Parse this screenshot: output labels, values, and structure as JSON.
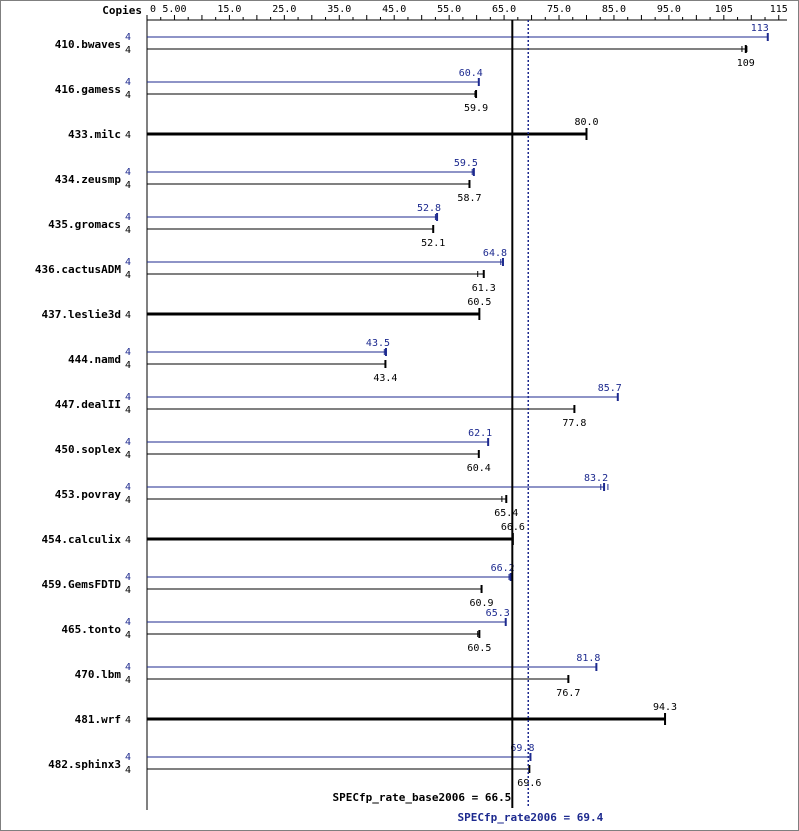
{
  "chart_data": {
    "type": "bar",
    "copies_header": "Copies",
    "x_ticks": [
      "0",
      "5.00",
      "15.0",
      "25.0",
      "35.0",
      "45.0",
      "55.0",
      "65.0",
      "75.0",
      "85.0",
      "95.0",
      "105",
      "115"
    ],
    "x_tick_values": [
      0,
      5,
      15,
      25,
      35,
      45,
      55,
      65,
      75,
      85,
      95,
      105,
      115
    ],
    "xlim": [
      0,
      116.5
    ],
    "grid": false,
    "colors": {
      "peak": "#1d2a8f",
      "base": "#000000",
      "frame": "#7f7f7f"
    },
    "series": [
      {
        "key": "peak",
        "metric_label": "SPECfp_rate2006 = 69.4",
        "value": 69.4
      },
      {
        "key": "base",
        "metric_label": "SPECfp_rate_base2006 = 66.5",
        "value": 66.5
      }
    ],
    "benchmarks": [
      {
        "name": "410.bwaves",
        "peak": 113,
        "peak_label": "113",
        "peak_copies": "4",
        "base": 109,
        "base_label": "109",
        "base_copies": "4",
        "base_lo": 108.3,
        "base_hi": 109.2
      },
      {
        "name": "416.gamess",
        "peak": 60.4,
        "peak_label": "60.4",
        "peak_copies": "4",
        "base": 59.9,
        "base_label": "59.9",
        "base_copies": "4",
        "base_lo": 59.7,
        "base_hi": 59.9
      },
      {
        "name": "433.milc",
        "single": true,
        "base": 80.0,
        "base_label": "80.0",
        "base_copies": "4"
      },
      {
        "name": "434.zeusmp",
        "peak": 59.5,
        "peak_label": "59.5",
        "peak_copies": "4",
        "peak_lo": 59.2,
        "peak_hi": 59.5,
        "base": 58.7,
        "base_label": "58.7",
        "base_copies": "4"
      },
      {
        "name": "435.gromacs",
        "peak": 52.8,
        "peak_label": "52.8",
        "peak_copies": "4",
        "peak_lo": 52.5,
        "peak_hi": 52.8,
        "base": 52.1,
        "base_label": "52.1",
        "base_copies": "4"
      },
      {
        "name": "436.cactusADM",
        "peak": 64.8,
        "peak_label": "64.8",
        "peak_copies": "4",
        "peak_lo": 64.4,
        "peak_hi": 64.8,
        "base": 61.3,
        "base_label": "61.3",
        "base_copies": "4",
        "base_lo": 60.2,
        "base_hi": 61.3
      },
      {
        "name": "437.leslie3d",
        "single": true,
        "base": 60.5,
        "base_label": "60.5",
        "base_copies": "4"
      },
      {
        "name": "444.namd",
        "peak": 43.5,
        "peak_label": "43.5",
        "peak_copies": "4",
        "peak_lo": 43.2,
        "peak_hi": 43.5,
        "base": 43.4,
        "base_label": "43.4",
        "base_copies": "4"
      },
      {
        "name": "447.dealII",
        "peak": 85.7,
        "peak_label": "85.7",
        "peak_copies": "4",
        "base": 77.8,
        "base_label": "77.8",
        "base_copies": "4"
      },
      {
        "name": "450.soplex",
        "peak": 62.1,
        "peak_label": "62.1",
        "peak_copies": "4",
        "base": 60.4,
        "base_label": "60.4",
        "base_copies": "4"
      },
      {
        "name": "453.povray",
        "peak": 83.2,
        "peak_label": "83.2",
        "peak_copies": "4",
        "peak_lo": 82.6,
        "peak_hi": 83.9,
        "base": 65.4,
        "base_label": "65.4",
        "base_copies": "4",
        "base_lo": 64.6,
        "base_hi": 65.4
      },
      {
        "name": "454.calculix",
        "single": true,
        "base": 66.6,
        "base_label": "66.6",
        "base_copies": "4"
      },
      {
        "name": "459.GemsFDTD",
        "peak": 66.2,
        "peak_label": "66.2",
        "peak_copies": "4",
        "peak_lo": 65.9,
        "peak_hi": 66.2,
        "base": 60.9,
        "base_label": "60.9",
        "base_copies": "4"
      },
      {
        "name": "465.tonto",
        "peak": 65.3,
        "peak_label": "65.3",
        "peak_copies": "4",
        "base": 60.5,
        "base_label": "60.5",
        "base_copies": "4",
        "base_lo": 60.2,
        "base_hi": 60.5
      },
      {
        "name": "470.lbm",
        "peak": 81.8,
        "peak_label": "81.8",
        "peak_copies": "4",
        "base": 76.7,
        "base_label": "76.7",
        "base_copies": "4"
      },
      {
        "name": "481.wrf",
        "single": true,
        "base": 94.3,
        "base_label": "94.3",
        "base_copies": "4"
      },
      {
        "name": "482.sphinx3",
        "peak": 69.8,
        "peak_label": "69.8",
        "peak_copies": "4",
        "base": 69.6,
        "base_label": "69.6",
        "base_copies": "4"
      }
    ]
  }
}
